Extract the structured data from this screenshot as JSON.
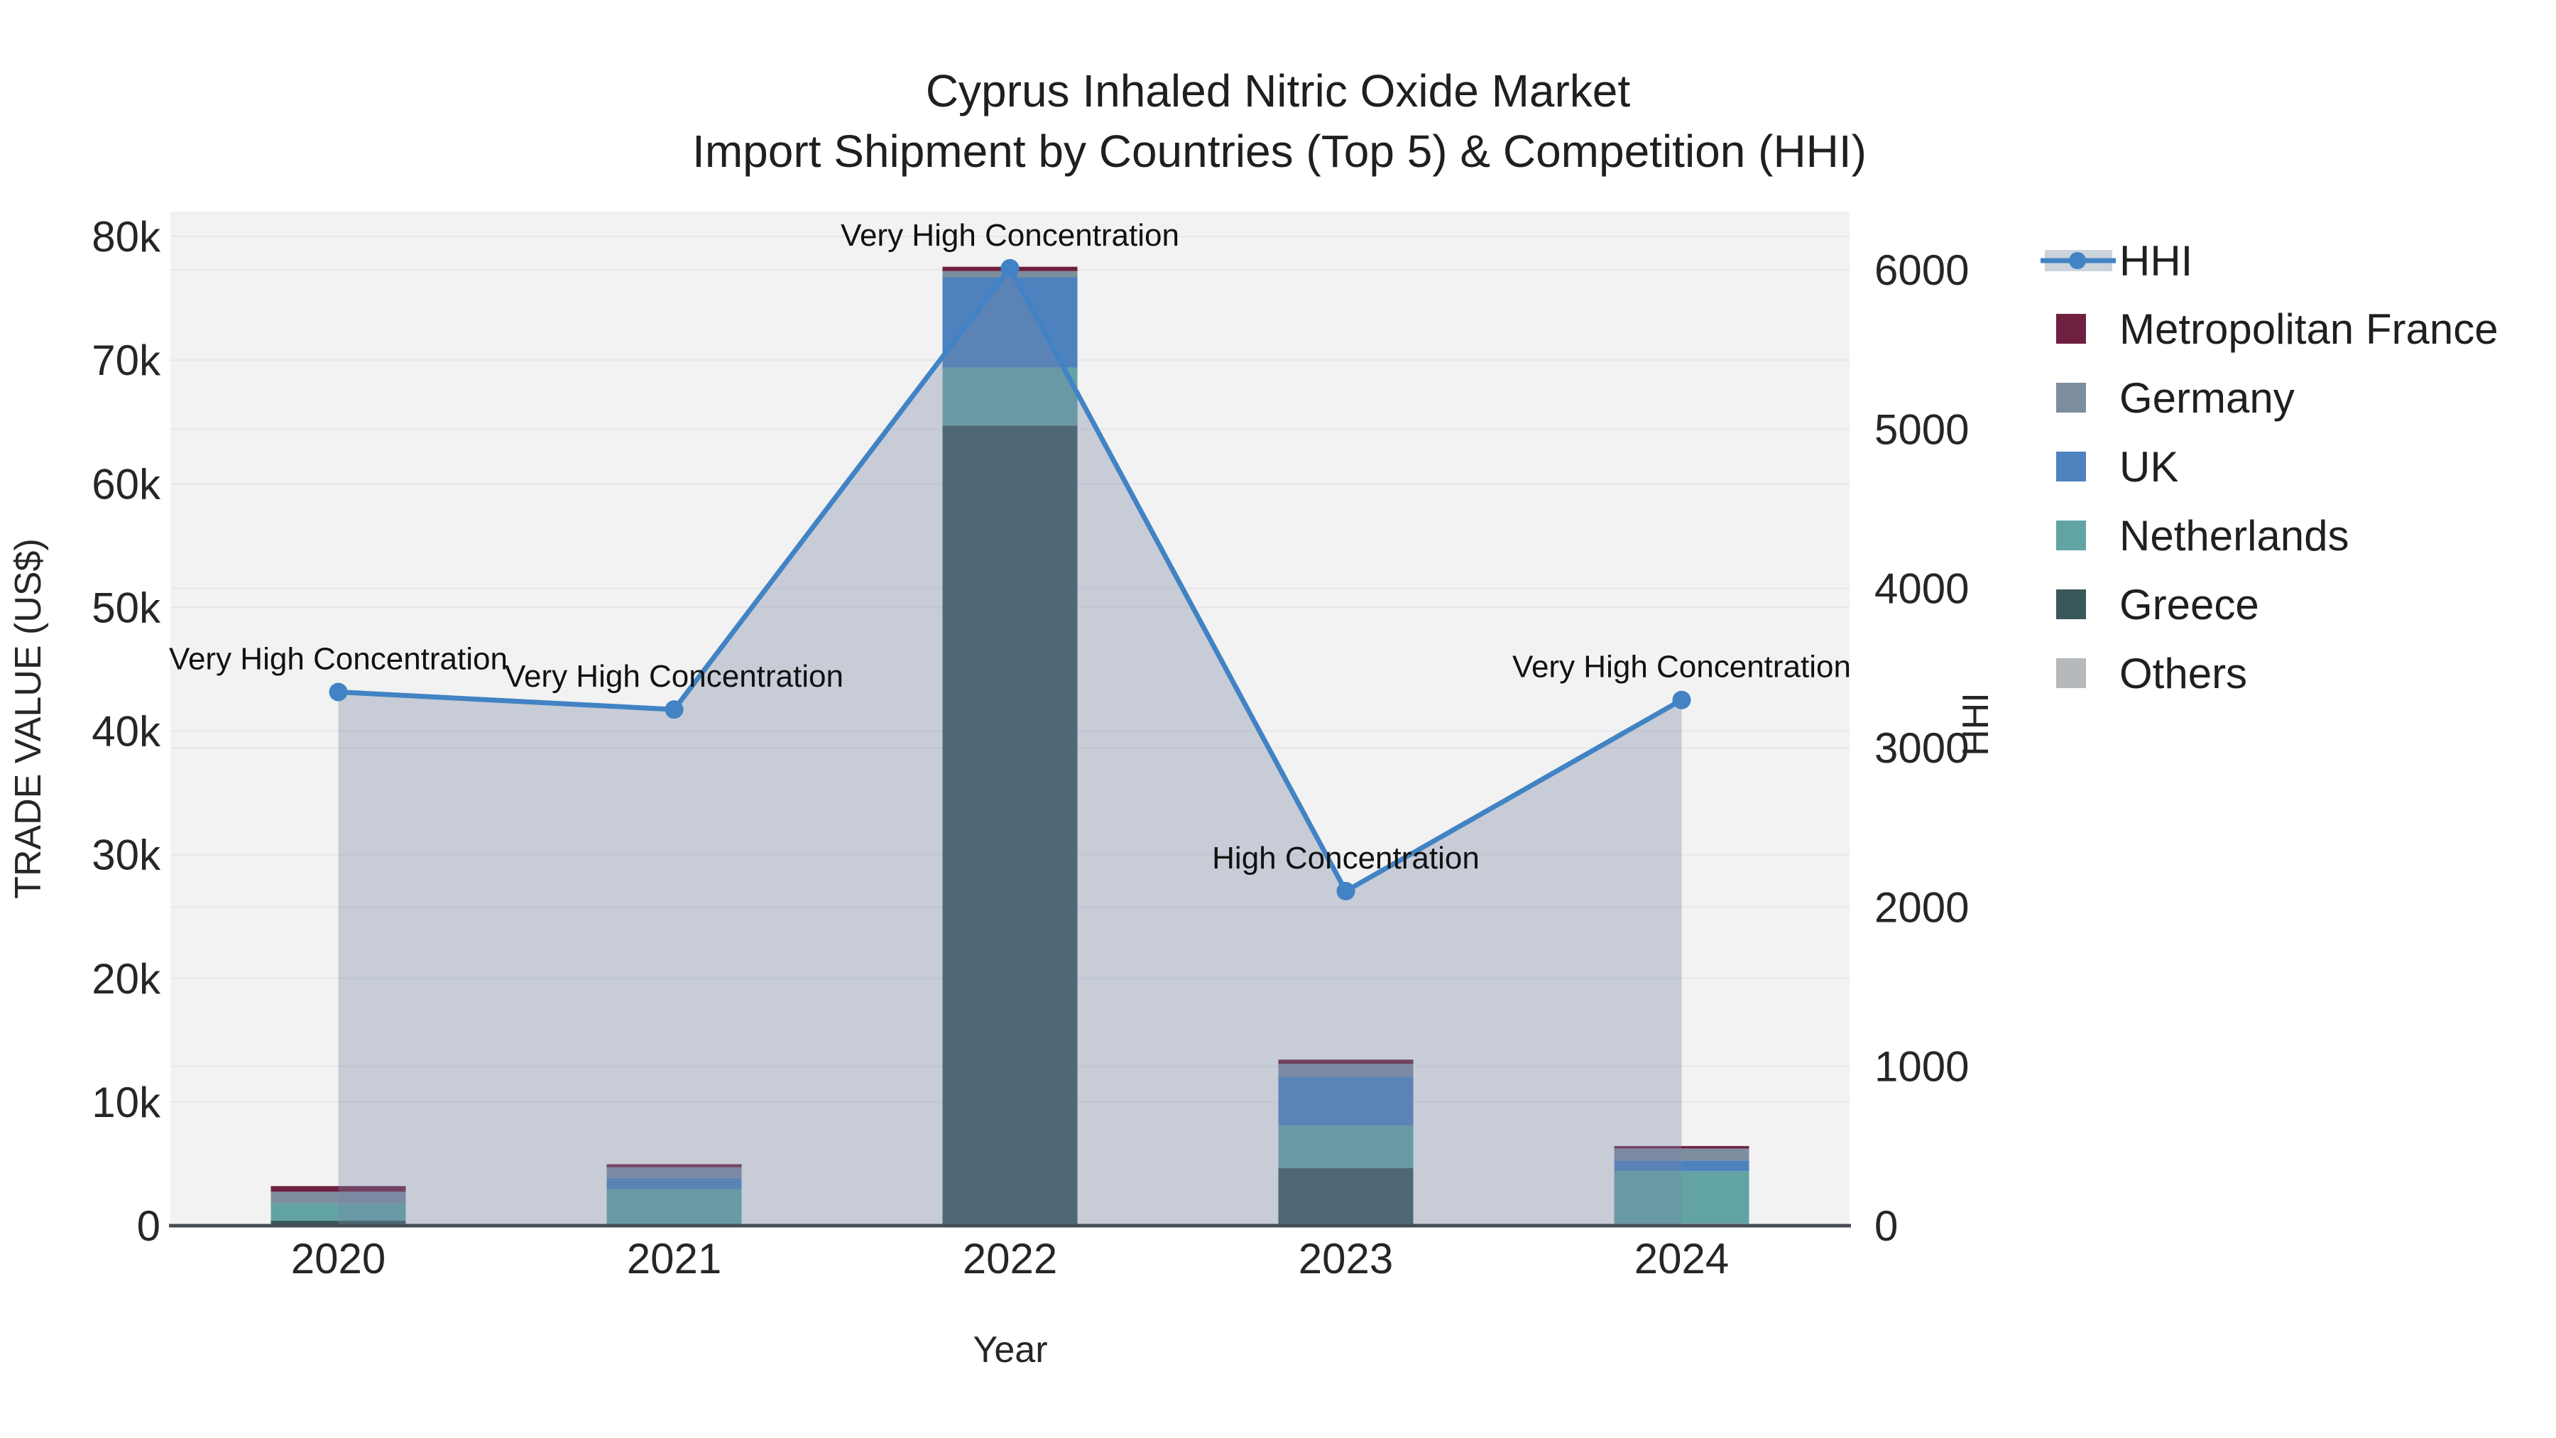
{
  "title": {
    "line1": "Cyprus Inhaled Nitric Oxide Market",
    "line2": "Import Shipment by Countries (Top 5) & Competition (HHI)"
  },
  "axes": {
    "x": {
      "title": "Year"
    },
    "y_left": {
      "title": "TRADE VALUE (US$)",
      "tick_labels": [
        "0",
        "10k",
        "20k",
        "30k",
        "40k",
        "50k",
        "60k",
        "70k",
        "80k"
      ],
      "max": 80000
    },
    "y_right": {
      "title": "HHI",
      "tick_labels": [
        "0",
        "1000",
        "2000",
        "3000",
        "4000",
        "5000",
        "6000"
      ],
      "max_tick": 6000
    }
  },
  "legend": {
    "items": [
      {
        "label": "HHI",
        "kind": "line",
        "color": "#4183c4"
      },
      {
        "label": "Metropolitan France",
        "kind": "swatch",
        "color": "#6f1f40"
      },
      {
        "label": "Germany",
        "kind": "swatch",
        "color": "#7d8da0"
      },
      {
        "label": "UK",
        "kind": "swatch",
        "color": "#4d82bf"
      },
      {
        "label": "Netherlands",
        "kind": "swatch",
        "color": "#62a4a4"
      },
      {
        "label": "Greece",
        "kind": "swatch",
        "color": "#3a585c"
      },
      {
        "label": "Others",
        "kind": "swatch",
        "color": "#b6b9bc"
      }
    ]
  },
  "colors": {
    "hhi_line": "#4183c4",
    "hhi_area": "rgba(119,136,167,0.35)",
    "plot_background": "#f2f2f2",
    "gridline": "#e4e6e9",
    "axis_line": "#474d52",
    "text": "#262626"
  },
  "chart_data": {
    "type": "bar",
    "subtype": "stacked-bars-with-line-overlay",
    "title": "Cyprus Inhaled Nitric Oxide Market — Import Shipment by Countries (Top 5) & Competition (HHI)",
    "xlabel": "Year",
    "ylabel": "TRADE VALUE (US$)",
    "ylabel_right": "HHI",
    "ylim_left": [
      0,
      80000
    ],
    "ylim_right": [
      0,
      6000
    ],
    "grid": true,
    "legend_position": "right",
    "categories": [
      "2020",
      "2021",
      "2022",
      "2023",
      "2024"
    ],
    "series": [
      {
        "name": "Others",
        "color": "#b6b9bc",
        "values": [
          0,
          0,
          0,
          0,
          170
        ]
      },
      {
        "name": "Greece",
        "color": "#3a585c",
        "values": [
          400,
          0,
          64700,
          4650,
          0
        ]
      },
      {
        "name": "Netherlands",
        "color": "#62a4a4",
        "values": [
          1400,
          2960,
          4700,
          3440,
          4240
        ]
      },
      {
        "name": "UK",
        "color": "#4d82bf",
        "values": [
          0,
          900,
          7300,
          3960,
          860
        ]
      },
      {
        "name": "Germany",
        "color": "#7d8da0",
        "values": [
          950,
          860,
          500,
          1030,
          970
        ]
      },
      {
        "name": "Metropolitan France",
        "color": "#6f1f40",
        "values": [
          450,
          250,
          350,
          350,
          200
        ]
      }
    ],
    "line_overlay": {
      "name": "HHI",
      "axis": "right",
      "color": "#4183c4",
      "values": [
        3350,
        3240,
        6010,
        2100,
        3300
      ]
    },
    "annotations": [
      {
        "category": "2020",
        "text": "Very High Concentration"
      },
      {
        "category": "2021",
        "text": "Very High Concentration"
      },
      {
        "category": "2022",
        "text": "Very High Concentration"
      },
      {
        "category": "2023",
        "text": "High Concentration"
      },
      {
        "category": "2024",
        "text": "Very High Concentration"
      }
    ]
  }
}
